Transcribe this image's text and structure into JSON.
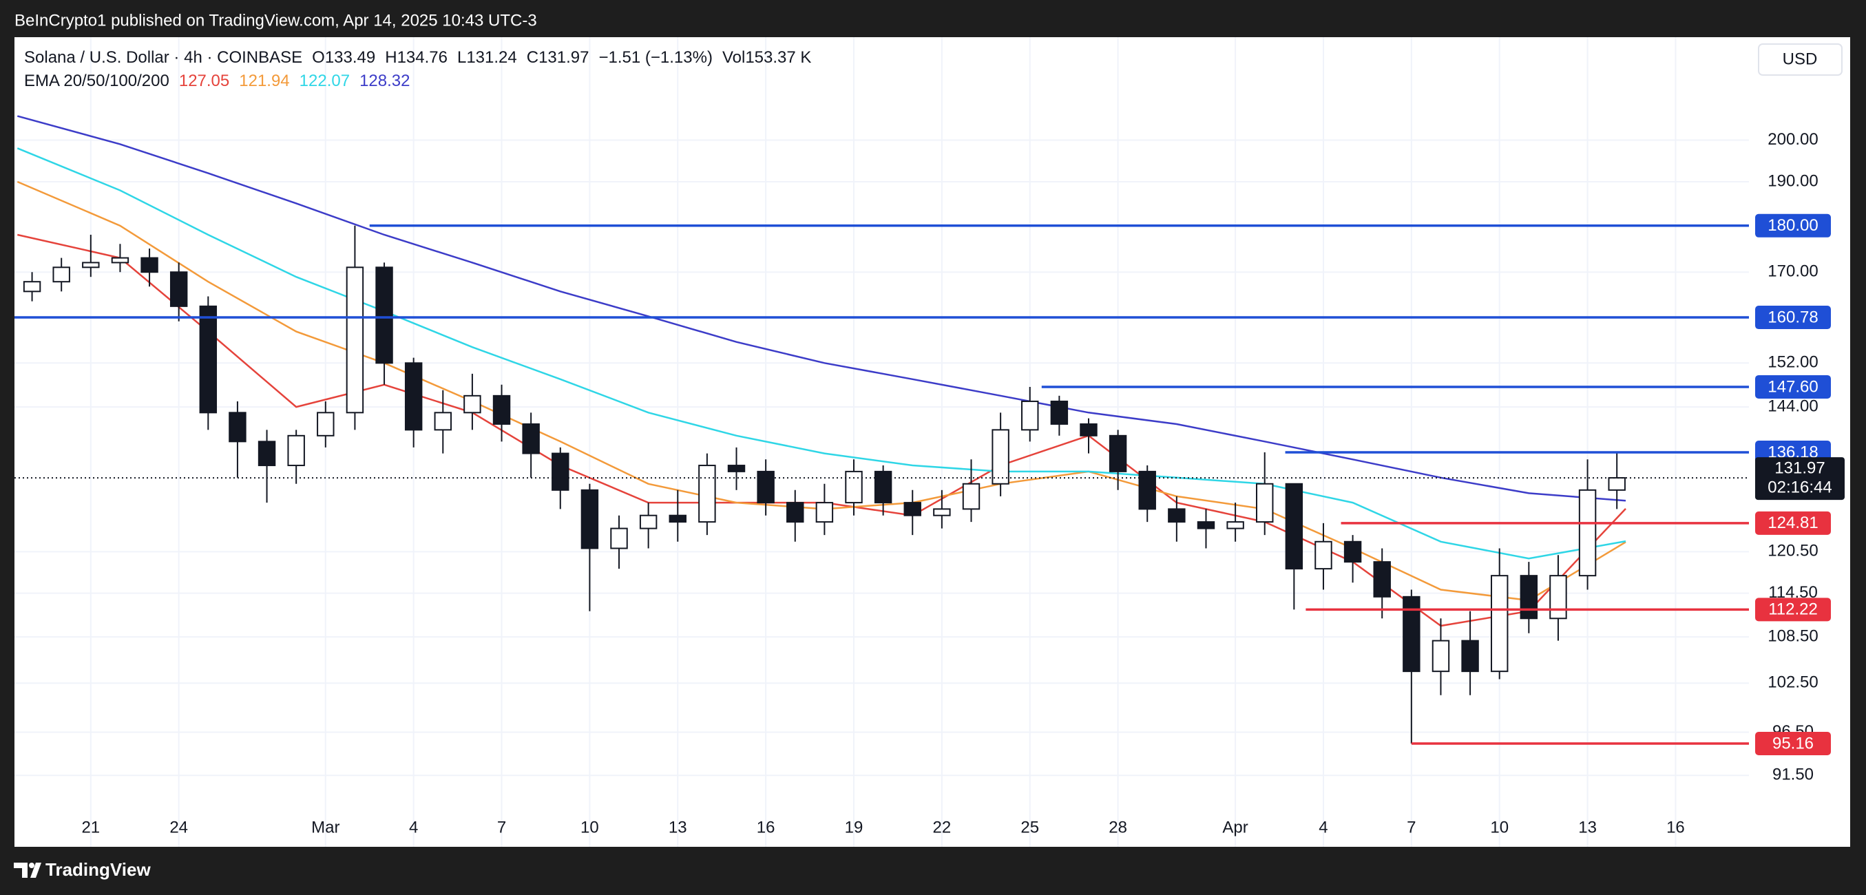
{
  "header": {
    "published": "BeInCrypto1 published on TradingView.com, Apr 14, 2025 10:43 UTC-3"
  },
  "chart_data": {
    "type": "candlestick",
    "symbol": "Solana / U.S. Dollar · 4h · COINBASE",
    "ohlc_text": [
      "O133.49",
      "H134.76",
      "L131.24",
      "C131.97",
      "−1.51 (−1.13%)",
      "Vol153.37 K"
    ],
    "indicator": "EMA 20/50/100/200",
    "currency": "USD",
    "up_color": "#ffffff",
    "down_color": "#131722",
    "x": [
      -2,
      -1,
      0,
      1,
      2,
      3,
      4,
      5,
      6,
      7,
      8,
      9,
      10,
      11,
      12,
      13,
      14,
      15,
      16,
      17,
      18,
      19,
      20,
      21,
      22,
      23,
      24,
      25,
      26,
      27,
      28,
      29,
      30,
      31,
      32,
      33,
      34,
      35,
      36,
      37,
      38,
      39,
      40,
      41,
      42,
      43,
      44,
      45,
      46,
      47,
      48,
      49,
      50,
      51,
      52
    ],
    "open": [
      166,
      168,
      171,
      172,
      173,
      170,
      163,
      143,
      138,
      134,
      139,
      143,
      171,
      152,
      140,
      143,
      146,
      141,
      136,
      130,
      121,
      124,
      126,
      125,
      134,
      133,
      128,
      125,
      128,
      133,
      128,
      126,
      127,
      131,
      140,
      145,
      141,
      139,
      133,
      127,
      125,
      124,
      125,
      131,
      118,
      122,
      119,
      114,
      104,
      108,
      104,
      117,
      111,
      117,
      130
    ],
    "high": [
      170,
      173,
      178,
      176,
      175,
      172,
      165,
      145,
      140,
      140,
      145,
      180,
      172,
      153,
      147,
      150,
      148,
      143,
      137,
      131,
      126,
      128,
      130,
      136,
      137,
      135,
      130,
      131,
      135,
      134,
      130,
      130,
      135,
      143,
      147.6,
      146,
      142,
      140,
      134,
      129,
      127,
      128,
      136.18,
      131,
      124.81,
      123,
      121,
      115,
      111,
      112,
      121,
      119,
      120,
      135,
      136.18
    ],
    "low": [
      164,
      166,
      169,
      170,
      167,
      160,
      140,
      132,
      128,
      131,
      137,
      140,
      148,
      137,
      136,
      140,
      138,
      132,
      127,
      112,
      118,
      121,
      122,
      123,
      130,
      126,
      122,
      123,
      126,
      126,
      123,
      124,
      125,
      129,
      138,
      139,
      136,
      130,
      125,
      122,
      121,
      122,
      123,
      112.22,
      115,
      116,
      111,
      95.16,
      101,
      101,
      103,
      109,
      108,
      115,
      127
    ],
    "close": [
      168,
      171,
      172,
      173,
      170,
      163,
      143,
      138,
      134,
      139,
      143,
      171,
      152,
      140,
      143,
      146,
      141,
      136,
      130,
      121,
      124,
      126,
      125,
      134,
      133,
      128,
      125,
      128,
      133,
      128,
      126,
      127,
      131,
      140,
      145,
      141,
      139,
      133,
      127,
      125,
      124,
      125,
      131,
      118,
      122,
      119,
      114,
      104,
      108,
      104,
      117,
      111,
      117,
      130,
      131.97
    ],
    "series": [
      {
        "color": "#e5433b",
        "x": [
          -2.5,
          1,
          4,
          7,
          10,
          13,
          16,
          19,
          22,
          25,
          28,
          31,
          34,
          37,
          40,
          43,
          46,
          49,
          52.3
        ],
        "values": [
          178,
          173,
          158,
          144,
          148,
          143,
          134,
          128,
          128,
          128,
          126,
          134,
          139,
          128,
          125,
          119,
          110,
          112,
          127.05
        ]
      },
      {
        "color": "#f39a3a",
        "x": [
          -2.5,
          1,
          4,
          7,
          10,
          13,
          16,
          19,
          22,
          25,
          28,
          31,
          34,
          37,
          40,
          43,
          46,
          49,
          52.3
        ],
        "values": [
          190,
          180,
          168,
          158,
          152,
          145,
          138,
          131,
          128,
          127,
          128,
          131,
          133,
          129,
          127,
          121,
          115,
          113.5,
          121.94
        ]
      },
      {
        "color": "#2fd6e6",
        "x": [
          -2.5,
          1,
          4,
          7,
          10,
          13,
          16,
          19,
          22,
          25,
          28,
          31,
          34,
          37,
          40,
          43,
          46,
          49,
          52.3
        ],
        "values": [
          198,
          188,
          178,
          169,
          162,
          155,
          149,
          143,
          139,
          136,
          134,
          133,
          133,
          132,
          131,
          128,
          122,
          119.5,
          122.07
        ]
      },
      {
        "color": "#3c3cc8",
        "x": [
          -2.5,
          1,
          4,
          7,
          10,
          13,
          16,
          19,
          22,
          25,
          28,
          31,
          34,
          37,
          40,
          43,
          46,
          49,
          52.3
        ],
        "values": [
          206,
          199,
          192,
          185,
          178,
          172,
          166,
          161,
          156,
          152,
          149,
          146,
          143,
          141,
          138,
          135,
          132,
          129.5,
          128.32
        ]
      }
    ],
    "xlim": [
      -2.6,
      56.5
    ],
    "xticks": [
      {
        "value": 0,
        "label": "21"
      },
      {
        "value": 3,
        "label": "24"
      },
      {
        "value": 8,
        "label": "Mar"
      },
      {
        "value": 11,
        "label": "4"
      },
      {
        "value": 14,
        "label": "7"
      },
      {
        "value": 17,
        "label": "10"
      },
      {
        "value": 20,
        "label": "13"
      },
      {
        "value": 23,
        "label": "16"
      },
      {
        "value": 26,
        "label": "19"
      },
      {
        "value": 29,
        "label": "22"
      },
      {
        "value": 32,
        "label": "25"
      },
      {
        "value": 35,
        "label": "28"
      },
      {
        "value": 39,
        "label": "Apr"
      },
      {
        "value": 42,
        "label": "4"
      },
      {
        "value": 45,
        "label": "7"
      },
      {
        "value": 48,
        "label": "10"
      },
      {
        "value": 51,
        "label": "13"
      },
      {
        "value": 54,
        "label": "16"
      }
    ],
    "ylim": [
      83.8,
      227
    ],
    "log_scale": true,
    "yticks": [
      {
        "value": 200,
        "label": "200.00"
      },
      {
        "value": 190,
        "label": "190.00"
      },
      {
        "value": 170,
        "label": "170.00"
      },
      {
        "value": 152,
        "label": "152.00"
      },
      {
        "value": 144,
        "label": "144.00"
      },
      {
        "value": 120.5,
        "label": "120.50"
      },
      {
        "value": 114.5,
        "label": "114.50"
      },
      {
        "value": 108.5,
        "label": "108.50"
      },
      {
        "value": 102.5,
        "label": "102.50"
      },
      {
        "value": 96.5,
        "label": "96.50"
      },
      {
        "value": 91.5,
        "label": "91.50"
      }
    ],
    "grid": true,
    "levels": [
      {
        "value": 180,
        "label": "180.00",
        "color": "#1f4fd6",
        "from": 9.5
      },
      {
        "value": 160.78,
        "label": "160.78",
        "color": "#1f4fd6",
        "from": -2.6
      },
      {
        "value": 147.6,
        "label": "147.60",
        "color": "#1f4fd6",
        "from": 32.4
      },
      {
        "value": 136.18,
        "label": "136.18",
        "color": "#1f4fd6",
        "from": 40.7
      },
      {
        "value": 124.81,
        "label": "124.81",
        "color": "#e8323f",
        "from": 42.6
      },
      {
        "value": 112.22,
        "label": "112.22",
        "color": "#e8323f",
        "from": 41.4
      },
      {
        "value": 95.16,
        "label": "95.16",
        "color": "#e8323f",
        "from": 45
      }
    ],
    "last_price": {
      "value": 131.97,
      "countdown": "02:16:44"
    }
  },
  "footer": {
    "brand": "TradingView"
  }
}
